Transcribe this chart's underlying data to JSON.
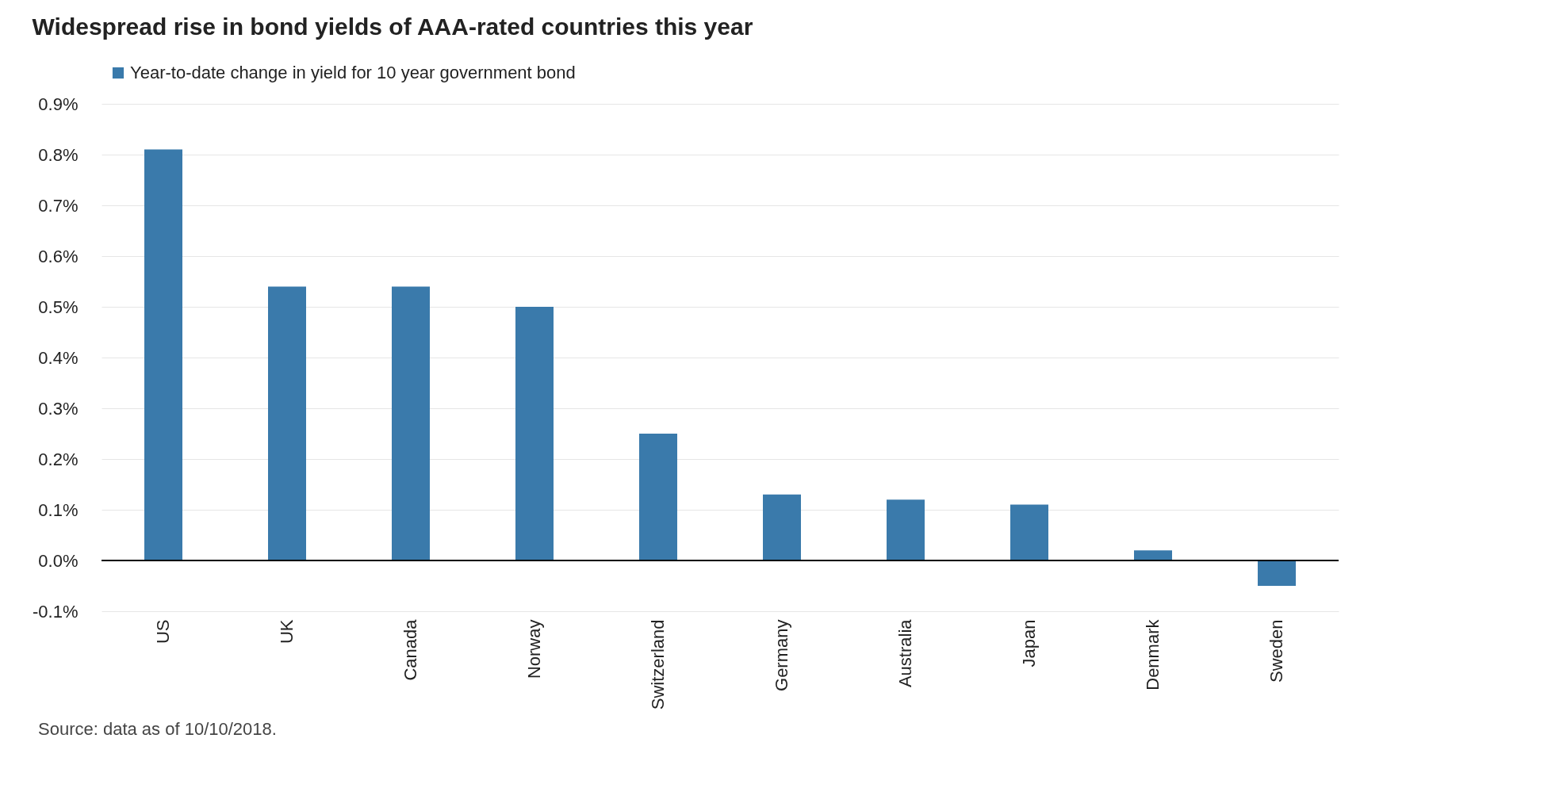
{
  "chart_data": {
    "type": "bar",
    "title": "Widespread rise in bond yields of AAA-rated countries this year",
    "categories": [
      "US",
      "UK",
      "Canada",
      "Norway",
      "Switzerland",
      "Germany",
      "Australia",
      "Japan",
      "Denmark",
      "Sweden"
    ],
    "series": [
      {
        "name": "Year-to-date change in yield for 10 year government bond",
        "color": "#3a7aab",
        "values": [
          0.81,
          0.54,
          0.54,
          0.5,
          0.25,
          0.13,
          0.12,
          0.11,
          0.02,
          -0.05
        ]
      }
    ],
    "ylim": [
      -0.1,
      0.9
    ],
    "yticks": [
      {
        "value": -0.1,
        "label": "-0.1%"
      },
      {
        "value": 0.0,
        "label": "0.0%"
      },
      {
        "value": 0.1,
        "label": "0.1%"
      },
      {
        "value": 0.2,
        "label": "0.2%"
      },
      {
        "value": 0.3,
        "label": "0.3%"
      },
      {
        "value": 0.4,
        "label": "0.4%"
      },
      {
        "value": 0.5,
        "label": "0.5%"
      },
      {
        "value": 0.6,
        "label": "0.6%"
      },
      {
        "value": 0.7,
        "label": "0.7%"
      },
      {
        "value": 0.8,
        "label": "0.8%"
      },
      {
        "value": 0.9,
        "label": "0.9%"
      }
    ],
    "grid": "y",
    "legend": "top",
    "annotations": [
      "Source: data as of 10/10/2018."
    ]
  }
}
